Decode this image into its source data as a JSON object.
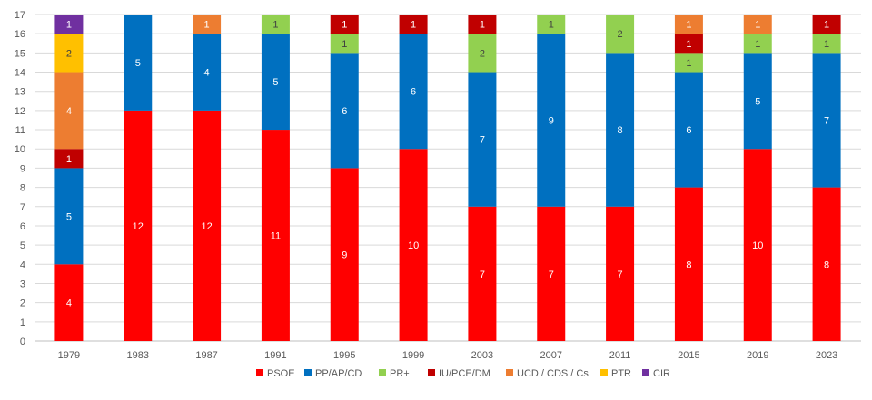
{
  "chart_data": {
    "type": "bar",
    "stacked": true,
    "title": "",
    "xlabel": "",
    "ylabel": "",
    "ylim": [
      0,
      17
    ],
    "yticks": [
      0,
      1,
      2,
      3,
      4,
      5,
      6,
      7,
      8,
      9,
      10,
      11,
      12,
      13,
      14,
      15,
      16,
      17
    ],
    "grid": true,
    "legend_position": "bottom",
    "categories": [
      "1979",
      "1983",
      "1987",
      "1991",
      "1995",
      "1999",
      "2003",
      "2007",
      "2011",
      "2015",
      "2019",
      "2023"
    ],
    "series": [
      {
        "name": "PSOE",
        "color": "#ff0000",
        "values": [
          4,
          12,
          12,
          11,
          9,
          10,
          7,
          7,
          7,
          8,
          10,
          8
        ]
      },
      {
        "name": "PP/AP/CD",
        "color": "#0070c0",
        "values": [
          5,
          5,
          4,
          5,
          6,
          6,
          7,
          9,
          8,
          6,
          5,
          7
        ]
      },
      {
        "name": "PR+",
        "color": "#92d050",
        "values": [
          0,
          0,
          0,
          1,
          1,
          0,
          2,
          1,
          2,
          1,
          1,
          1
        ]
      },
      {
        "name": "IU/PCE/DM",
        "color": "#c00000",
        "values": [
          1,
          0,
          0,
          0,
          1,
          1,
          1,
          0,
          0,
          1,
          0,
          1
        ]
      },
      {
        "name": "UCD / CDS / Cs",
        "color": "#ed7d31",
        "values": [
          4,
          0,
          1,
          0,
          0,
          0,
          0,
          0,
          0,
          1,
          1,
          0
        ]
      },
      {
        "name": "PTR",
        "color": "#ffc000",
        "values": [
          2,
          0,
          0,
          0,
          0,
          0,
          0,
          0,
          0,
          0,
          0,
          0
        ]
      },
      {
        "name": "CIR",
        "color": "#7030a0",
        "values": [
          1,
          0,
          0,
          0,
          0,
          0,
          0,
          0,
          0,
          0,
          0,
          0
        ]
      }
    ],
    "stack_order": [
      [
        "PSOE",
        "PP/AP/CD",
        "IU/PCE/DM",
        "UCD / CDS / Cs",
        "PTR",
        "CIR"
      ],
      [
        "PSOE",
        "PP/AP/CD"
      ],
      [
        "PSOE",
        "PP/AP/CD",
        "UCD / CDS / Cs"
      ],
      [
        "PSOE",
        "PP/AP/CD",
        "PR+"
      ],
      [
        "PSOE",
        "PP/AP/CD",
        "PR+",
        "IU/PCE/DM"
      ],
      [
        "PSOE",
        "PP/AP/CD",
        "IU/PCE/DM"
      ],
      [
        "PSOE",
        "PP/AP/CD",
        "PR+",
        "IU/PCE/DM"
      ],
      [
        "PSOE",
        "PP/AP/CD",
        "PR+"
      ],
      [
        "PSOE",
        "PP/AP/CD",
        "PR+"
      ],
      [
        "PSOE",
        "PP/AP/CD",
        "PR+",
        "IU/PCE/DM",
        "UCD / CDS / Cs"
      ],
      [
        "PSOE",
        "PP/AP/CD",
        "PR+",
        "UCD / CDS / Cs"
      ],
      [
        "PSOE",
        "PP/AP/CD",
        "PR+",
        "IU/PCE/DM"
      ]
    ]
  }
}
